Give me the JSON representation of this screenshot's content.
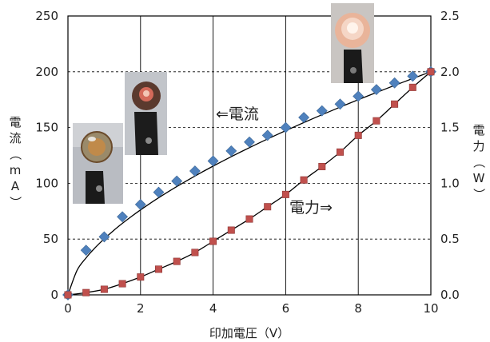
{
  "chart_data": {
    "type": "scatter",
    "xlabel": "印加電圧（V）",
    "ylabel_left": "電流（mA）",
    "ylabel_right": "電力（W）",
    "xlim": [
      0,
      10
    ],
    "ylim_left": [
      0,
      250
    ],
    "ylim_right": [
      0,
      2.5
    ],
    "x_ticks": [
      "0",
      "2",
      "4",
      "6",
      "8",
      "10"
    ],
    "y_left_ticks": [
      "0",
      "50",
      "100",
      "150",
      "200",
      "250"
    ],
    "y_right_ticks": [
      "0.0",
      "0.5",
      "1.0",
      "1.5",
      "2.0",
      "2.5"
    ],
    "grid": true,
    "series": [
      {
        "name": "電流",
        "axis": "left",
        "marker": "diamond",
        "color": "#4f81bd",
        "x": [
          0,
          0.5,
          1,
          1.5,
          2,
          2.5,
          3,
          3.5,
          4,
          4.5,
          5,
          5.5,
          6,
          6.5,
          7,
          7.5,
          8,
          8.5,
          9,
          9.5,
          10
        ],
        "y": [
          0,
          40,
          52,
          70,
          81,
          92,
          102,
          111,
          120,
          129,
          137,
          143,
          150,
          159,
          165,
          171,
          178,
          184,
          190,
          196,
          200
        ]
      },
      {
        "name": "電力",
        "axis": "right",
        "marker": "square",
        "color": "#c0504d",
        "x": [
          0,
          0.5,
          1,
          1.5,
          2,
          2.5,
          3,
          3.5,
          4,
          4.5,
          5,
          5.5,
          6,
          6.5,
          7,
          7.5,
          8,
          8.5,
          9,
          9.5,
          10
        ],
        "y": [
          0,
          0.02,
          0.05,
          0.1,
          0.16,
          0.23,
          0.3,
          0.38,
          0.48,
          0.58,
          0.68,
          0.79,
          0.9,
          1.03,
          1.15,
          1.28,
          1.43,
          1.56,
          1.71,
          1.86,
          2.0
        ]
      }
    ],
    "annotations": [
      "⇐電流",
      "電力⇒"
    ]
  }
}
